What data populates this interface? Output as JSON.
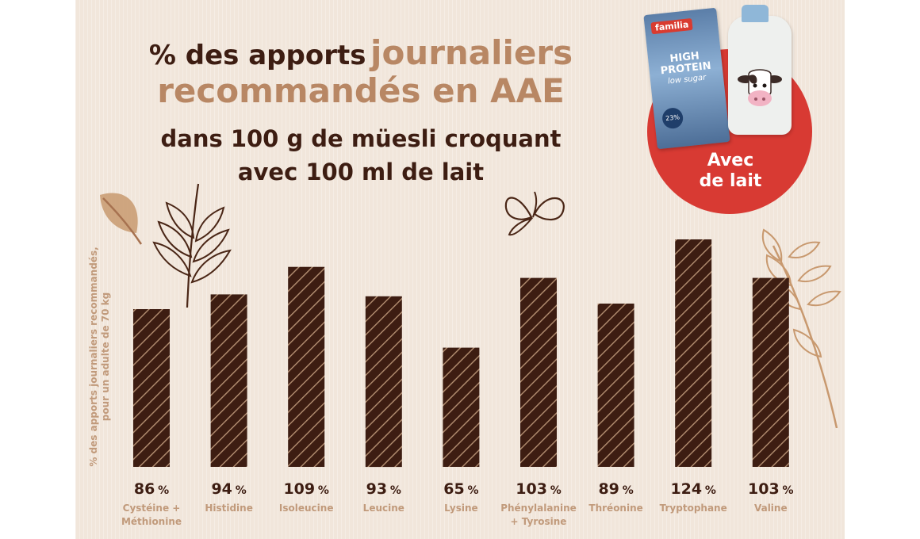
{
  "title": {
    "line1_part1": "% des apports",
    "line1_part2": "journaliers",
    "line2": "recommandés en AAE",
    "line3": "dans 100 g de müesli croquant",
    "line4": "avec 100 ml de lait"
  },
  "badge": {
    "line1": "Avec",
    "line2": "de lait"
  },
  "product": {
    "brand": "familia",
    "name_line1": "HIGH",
    "name_line2": "PROTEIN",
    "name_line3": "low sugar",
    "badge_value": "23%"
  },
  "colors": {
    "bar": "#3d1d12",
    "title_dark": "#3d1d12",
    "title_light": "#b88764",
    "label": "#c19a7b",
    "badge": "#d83a33"
  },
  "chart_data": {
    "type": "bar",
    "title": "% des apports journaliers recommandés en AAE dans 100 g de müesli croquant avec 100 ml de lait",
    "ylabel": "% des apports journaliers recommandés, pour un adulte de 70 kg",
    "ylabel_line1": "% des apports journaliers recommandés,",
    "ylabel_line2": "pour un adulte de 70 kg",
    "xlabel": "",
    "categories": [
      [
        "Cystéine +",
        "Méthionine"
      ],
      [
        "Histidine"
      ],
      [
        "Isoleucine"
      ],
      [
        "Leucine"
      ],
      [
        "Lysine"
      ],
      [
        "Phénylalanine",
        "+ Tyrosine"
      ],
      [
        "Thréonine"
      ],
      [
        "Tryptophane"
      ],
      [
        "Valine"
      ]
    ],
    "values": [
      86,
      94,
      109,
      93,
      65,
      103,
      89,
      124,
      103
    ],
    "value_suffix": "%",
    "ylim": [
      0,
      124
    ],
    "grid": false,
    "legend": "none"
  }
}
